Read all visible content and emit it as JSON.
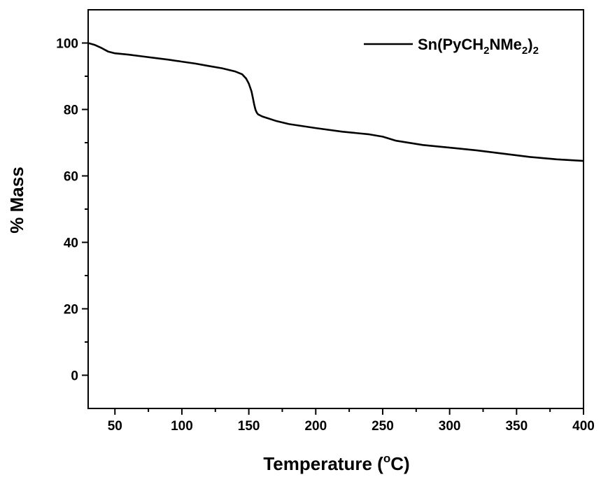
{
  "chart_data": {
    "type": "line",
    "title": "",
    "xlabel": "Temperature (",
    "xlabel_sup": "o",
    "xlabel_suffix": "C)",
    "ylabel": "% Mass",
    "xlim": [
      30,
      400
    ],
    "ylim": [
      -10,
      110
    ],
    "x_ticks": [
      50,
      100,
      150,
      200,
      250,
      300,
      350,
      400
    ],
    "y_ticks": [
      0,
      20,
      40,
      60,
      80,
      100
    ],
    "x_minor_ticks": [
      75,
      125,
      175,
      225,
      275,
      325,
      375
    ],
    "y_minor_ticks": [
      10,
      30,
      50,
      70,
      90
    ],
    "grid": false,
    "legend_position": "top-right",
    "legend": {
      "base": "Sn(PyCH",
      "sub1": "2",
      "mid": "NMe",
      "sub2": "2",
      "close": ")",
      "sub3": "2"
    },
    "series": [
      {
        "color": "#000000",
        "x": [
          30,
          35,
          40,
          45,
          50,
          60,
          70,
          80,
          90,
          100,
          110,
          120,
          130,
          140,
          145,
          148,
          150,
          152,
          153,
          154,
          155,
          156,
          157,
          160,
          170,
          180,
          200,
          220,
          240,
          250,
          260,
          280,
          300,
          320,
          340,
          360,
          380,
          400
        ],
        "y": [
          100.0,
          99.4,
          98.5,
          97.4,
          96.9,
          96.5,
          96.0,
          95.5,
          95.0,
          94.4,
          93.8,
          93.1,
          92.4,
          91.4,
          90.6,
          89.3,
          87.8,
          85.5,
          83.5,
          81.5,
          79.9,
          79.0,
          78.5,
          77.9,
          76.6,
          75.6,
          74.4,
          73.3,
          72.5,
          71.8,
          70.6,
          69.3,
          68.5,
          67.7,
          66.7,
          65.7,
          65.0,
          64.5
        ]
      }
    ]
  }
}
